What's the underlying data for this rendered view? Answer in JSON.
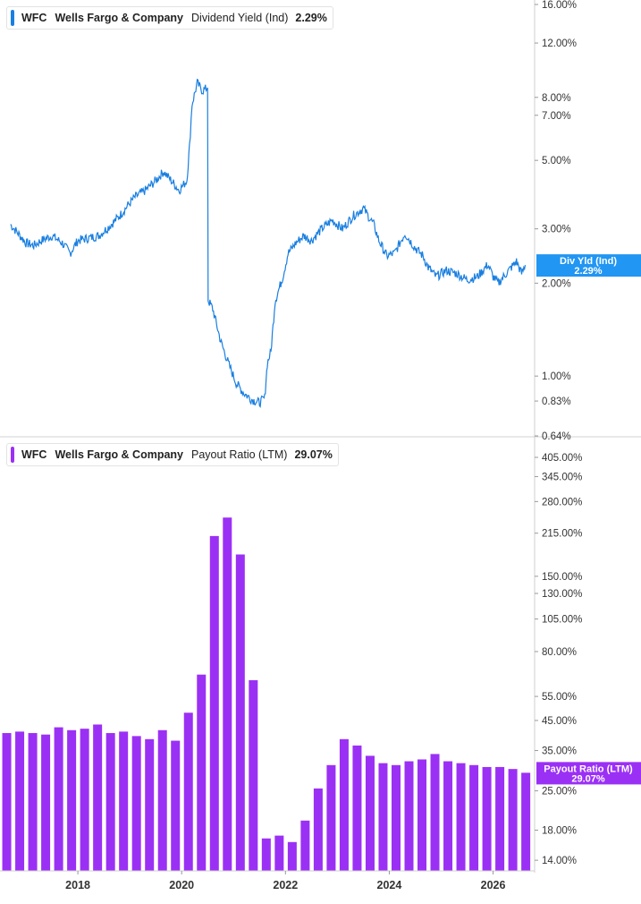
{
  "colors": {
    "yield_line": "#1a7fe0",
    "yield_badge": "#2196f3",
    "payout_bar": "#9b30f5",
    "payout_badge": "#9b30f5",
    "axis": "#cccccc",
    "text": "#333333"
  },
  "legends": {
    "top": {
      "ticker": "WFC",
      "company": "Wells Fargo & Company",
      "metric": "Dividend Yield (Ind)",
      "value": "2.29%"
    },
    "bottom": {
      "ticker": "WFC",
      "company": "Wells Fargo & Company",
      "metric": "Payout Ratio (LTM)",
      "value": "29.07%"
    }
  },
  "badges": {
    "top": {
      "line1": "Div Yld (Ind)",
      "line2": "2.29%"
    },
    "bottom": {
      "line1": "Payout Ratio (LTM)",
      "line2": "29.07%"
    }
  },
  "chart_data": [
    {
      "type": "line",
      "scale": "log",
      "series": [
        {
          "name": "Dividend Yield (Ind)"
        }
      ],
      "ylim": [
        0.64,
        16.0
      ],
      "yticks": [
        "16.00%",
        "12.00%",
        "8.00%",
        "7.00%",
        "5.00%",
        "3.00%",
        "2.00%",
        "1.00%",
        "0.83%",
        "0.64%"
      ],
      "ytick_values": [
        16.0,
        12.0,
        8.0,
        7.0,
        5.0,
        3.0,
        2.0,
        1.0,
        0.83,
        0.64
      ],
      "x": [
        2016.7,
        2016.85,
        2017.0,
        2017.15,
        2017.3,
        2017.5,
        2017.7,
        2017.85,
        2018.0,
        2018.2,
        2018.4,
        2018.6,
        2018.8,
        2018.95,
        2019.1,
        2019.3,
        2019.5,
        2019.65,
        2019.8,
        2019.95,
        2020.1,
        2020.15,
        2020.2,
        2020.3,
        2020.4,
        2020.5,
        2020.52,
        2020.6,
        2020.75,
        2020.9,
        2021.05,
        2021.2,
        2021.35,
        2021.5,
        2021.6,
        2021.65,
        2021.72,
        2021.8,
        2021.95,
        2022.05,
        2022.2,
        2022.35,
        2022.5,
        2022.7,
        2022.9,
        2023.1,
        2023.3,
        2023.5,
        2023.7,
        2023.8,
        2023.95,
        2024.1,
        2024.3,
        2024.5,
        2024.65,
        2024.75,
        2024.9,
        2025.1,
        2025.3,
        2025.5,
        2025.7,
        2025.9,
        2026.0,
        2026.1,
        2026.3,
        2026.45,
        2026.55,
        2026.62
      ],
      "y": [
        3.1,
        2.9,
        2.7,
        2.65,
        2.75,
        2.85,
        2.7,
        2.5,
        2.75,
        2.8,
        2.85,
        3.05,
        3.3,
        3.55,
        3.8,
        4.0,
        4.3,
        4.6,
        4.3,
        4.0,
        4.3,
        5.5,
        7.6,
        8.9,
        8.4,
        8.6,
        1.75,
        1.65,
        1.3,
        1.1,
        0.95,
        0.88,
        0.84,
        0.82,
        0.85,
        1.1,
        1.2,
        1.75,
        2.1,
        2.5,
        2.7,
        2.85,
        2.75,
        3.0,
        3.2,
        3.0,
        3.3,
        3.5,
        3.1,
        2.75,
        2.45,
        2.5,
        2.9,
        2.6,
        2.45,
        2.25,
        2.1,
        2.2,
        2.15,
        2.05,
        2.1,
        2.3,
        2.1,
        2.0,
        2.2,
        2.35,
        2.15,
        2.29
      ]
    },
    {
      "type": "bar",
      "scale": "log",
      "series": [
        {
          "name": "Payout Ratio (LTM)"
        }
      ],
      "ylim": [
        13.5,
        405.0
      ],
      "yticks": [
        "405.00%",
        "345.00%",
        "280.00%",
        "215.00%",
        "150.00%",
        "130.00%",
        "105.00%",
        "80.00%",
        "55.00%",
        "45.00%",
        "35.00%",
        "25.00%",
        "18.00%",
        "14.00%"
      ],
      "ytick_values": [
        405,
        345,
        280,
        215,
        150,
        130,
        105,
        80,
        55,
        45,
        35,
        25,
        18,
        14
      ],
      "x": [
        2016.63,
        2016.88,
        2017.13,
        2017.38,
        2017.63,
        2017.88,
        2018.13,
        2018.38,
        2018.63,
        2018.88,
        2019.13,
        2019.38,
        2019.63,
        2019.88,
        2020.13,
        2020.38,
        2020.63,
        2020.88,
        2021.13,
        2021.38,
        2021.63,
        2021.88,
        2022.13,
        2022.38,
        2022.63,
        2022.88,
        2023.13,
        2023.38,
        2023.63,
        2023.88,
        2024.13,
        2024.38,
        2024.63,
        2024.88,
        2025.13,
        2025.38,
        2025.63,
        2025.88,
        2026.13,
        2026.38,
        2026.63
      ],
      "values": [
        40.5,
        41.0,
        40.5,
        40.0,
        42.5,
        41.5,
        42.0,
        43.5,
        40.5,
        41.0,
        39.5,
        38.5,
        41.5,
        38.0,
        48.0,
        66.0,
        210.0,
        245.0,
        180.0,
        63.0,
        16.8,
        17.2,
        16.3,
        19.5,
        25.5,
        31.0,
        38.5,
        36.5,
        33.5,
        31.5,
        31.0,
        32.0,
        32.5,
        34.0,
        32.0,
        31.5,
        31.0,
        30.5,
        30.5,
        30.0,
        29.07
      ]
    }
  ],
  "xaxis": {
    "ticks": [
      "2018",
      "2020",
      "2022",
      "2024",
      "2026"
    ],
    "tick_values": [
      2018,
      2020,
      2022,
      2024,
      2026
    ],
    "xlim": [
      2016.5,
      2026.8
    ]
  }
}
